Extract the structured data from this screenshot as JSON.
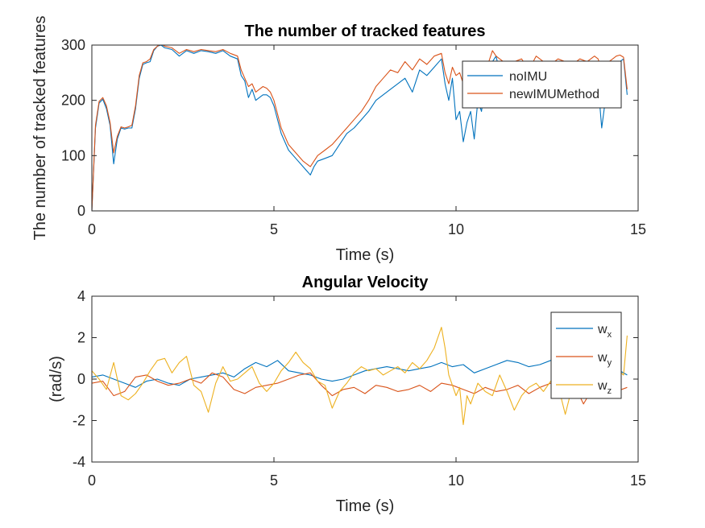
{
  "chart_data": [
    {
      "type": "line",
      "title": "The number of tracked features",
      "xlabel": "Time (s)",
      "ylabel": "The number of tracked features",
      "xlim": [
        0,
        15
      ],
      "ylim": [
        0,
        300
      ],
      "xticks": [
        0,
        5,
        10,
        15
      ],
      "yticks": [
        0,
        100,
        200,
        300
      ],
      "xtick_labels": [
        "0",
        "5",
        "10",
        "15"
      ],
      "ytick_labels": [
        "0",
        "100",
        "200",
        "300"
      ],
      "grid": false,
      "legend_position": "top-right",
      "series": [
        {
          "name": "noIMU",
          "color": "#0072BD",
          "x": [
            0,
            0.1,
            0.2,
            0.3,
            0.4,
            0.5,
            0.6,
            0.7,
            0.8,
            0.9,
            1.0,
            1.1,
            1.2,
            1.3,
            1.4,
            1.5,
            1.6,
            1.7,
            1.8,
            1.9,
            2.0,
            2.2,
            2.4,
            2.6,
            2.8,
            3.0,
            3.2,
            3.4,
            3.6,
            3.8,
            4.0,
            4.1,
            4.2,
            4.3,
            4.4,
            4.5,
            4.6,
            4.7,
            4.8,
            4.9,
            5.0,
            5.2,
            5.4,
            5.6,
            5.8,
            6.0,
            6.1,
            6.2,
            6.4,
            6.6,
            6.8,
            7.0,
            7.2,
            7.4,
            7.6,
            7.8,
            8.0,
            8.2,
            8.4,
            8.6,
            8.8,
            9.0,
            9.2,
            9.4,
            9.6,
            9.7,
            9.8,
            9.9,
            10.0,
            10.1,
            10.2,
            10.3,
            10.4,
            10.5,
            10.6,
            10.7,
            10.8,
            10.9,
            11.0,
            11.1,
            11.2,
            11.4,
            11.6,
            11.8,
            12.0,
            12.2,
            12.4,
            12.6,
            12.8,
            13.0,
            13.2,
            13.4,
            13.6,
            13.8,
            13.9,
            14.0,
            14.1,
            14.2,
            14.3,
            14.4,
            14.5,
            14.6,
            14.7
          ],
          "values": [
            0,
            150,
            195,
            202,
            185,
            155,
            85,
            130,
            150,
            148,
            150,
            150,
            185,
            240,
            265,
            268,
            270,
            290,
            298,
            300,
            295,
            292,
            280,
            290,
            285,
            290,
            288,
            285,
            290,
            280,
            275,
            245,
            235,
            205,
            220,
            200,
            205,
            210,
            210,
            205,
            190,
            140,
            110,
            95,
            80,
            65,
            80,
            90,
            95,
            100,
            120,
            140,
            150,
            165,
            180,
            200,
            210,
            220,
            230,
            240,
            215,
            255,
            245,
            260,
            275,
            230,
            200,
            240,
            165,
            180,
            125,
            160,
            180,
            130,
            200,
            180,
            230,
            245,
            270,
            280,
            250,
            240,
            230,
            245,
            220,
            265,
            245,
            235,
            255,
            250,
            220,
            250,
            240,
            265,
            230,
            150,
            200,
            240,
            250,
            260,
            270,
            275,
            210
          ]
        },
        {
          "name": "newIMUMethod",
          "color": "#D95319",
          "x": [
            0,
            0.1,
            0.2,
            0.3,
            0.4,
            0.5,
            0.6,
            0.7,
            0.8,
            0.9,
            1.0,
            1.1,
            1.2,
            1.3,
            1.4,
            1.5,
            1.6,
            1.7,
            1.8,
            1.9,
            2.0,
            2.2,
            2.4,
            2.6,
            2.8,
            3.0,
            3.2,
            3.4,
            3.6,
            3.8,
            4.0,
            4.1,
            4.2,
            4.3,
            4.4,
            4.5,
            4.6,
            4.7,
            4.8,
            4.9,
            5.0,
            5.2,
            5.4,
            5.6,
            5.8,
            6.0,
            6.1,
            6.2,
            6.4,
            6.6,
            6.8,
            7.0,
            7.2,
            7.4,
            7.6,
            7.8,
            8.0,
            8.2,
            8.4,
            8.6,
            8.8,
            9.0,
            9.2,
            9.4,
            9.6,
            9.7,
            9.8,
            9.9,
            10.0,
            10.1,
            10.2,
            10.3,
            10.4,
            10.5,
            10.6,
            10.7,
            10.8,
            10.9,
            11.0,
            11.1,
            11.2,
            11.4,
            11.6,
            11.8,
            12.0,
            12.2,
            12.4,
            12.6,
            12.8,
            13.0,
            13.2,
            13.4,
            13.6,
            13.8,
            13.9,
            14.0,
            14.1,
            14.2,
            14.3,
            14.4,
            14.5,
            14.6,
            14.7
          ],
          "values": [
            0,
            155,
            198,
            205,
            190,
            160,
            105,
            135,
            152,
            150,
            152,
            155,
            190,
            245,
            268,
            270,
            275,
            292,
            298,
            302,
            298,
            295,
            285,
            292,
            288,
            292,
            290,
            288,
            292,
            285,
            280,
            255,
            240,
            225,
            230,
            215,
            220,
            225,
            222,
            215,
            200,
            150,
            120,
            105,
            90,
            80,
            90,
            100,
            110,
            120,
            135,
            150,
            165,
            180,
            200,
            225,
            240,
            255,
            250,
            270,
            255,
            275,
            265,
            280,
            285,
            250,
            230,
            260,
            245,
            250,
            230,
            225,
            235,
            240,
            260,
            245,
            255,
            270,
            290,
            280,
            275,
            265,
            270,
            275,
            255,
            280,
            270,
            265,
            275,
            270,
            265,
            275,
            270,
            280,
            275,
            255,
            265,
            270,
            275,
            280,
            282,
            278,
            220
          ]
        }
      ]
    },
    {
      "type": "line",
      "title": "Angular Velocity",
      "xlabel": "Time (s)",
      "ylabel": "(rad/s)",
      "xlim": [
        0,
        15
      ],
      "ylim": [
        -4,
        4
      ],
      "xticks": [
        0,
        5,
        10,
        15
      ],
      "yticks": [
        -4,
        -2,
        0,
        2,
        4
      ],
      "xtick_labels": [
        "0",
        "5",
        "10",
        "15"
      ],
      "ytick_labels": [
        "-4",
        "-2",
        "0",
        "2",
        "4"
      ],
      "grid": false,
      "legend_position": "top-right",
      "series": [
        {
          "name": "w",
          "subscript": "x",
          "color": "#0072BD",
          "x": [
            0,
            0.3,
            0.6,
            0.9,
            1.2,
            1.5,
            1.8,
            2.1,
            2.4,
            2.7,
            3.0,
            3.3,
            3.6,
            3.9,
            4.2,
            4.5,
            4.8,
            5.1,
            5.4,
            5.7,
            6.0,
            6.3,
            6.6,
            6.9,
            7.2,
            7.5,
            7.8,
            8.1,
            8.4,
            8.7,
            9.0,
            9.3,
            9.6,
            9.9,
            10.2,
            10.5,
            10.8,
            11.1,
            11.4,
            11.7,
            12.0,
            12.3,
            12.6,
            12.9,
            13.2,
            13.5,
            13.8,
            14.1,
            14.4,
            14.7
          ],
          "values": [
            0.1,
            0.2,
            0.0,
            -0.2,
            -0.4,
            -0.1,
            0.0,
            -0.2,
            -0.3,
            0.0,
            0.1,
            0.2,
            0.3,
            0.1,
            0.5,
            0.8,
            0.6,
            0.9,
            0.4,
            0.3,
            0.2,
            0.0,
            -0.1,
            0.0,
            0.2,
            0.4,
            0.5,
            0.6,
            0.5,
            0.4,
            0.5,
            0.6,
            0.8,
            0.6,
            0.7,
            0.3,
            0.5,
            0.7,
            0.9,
            0.8,
            0.6,
            0.7,
            0.9,
            1.0,
            0.8,
            0.7,
            0.4,
            0.3,
            0.5,
            0.2
          ]
        },
        {
          "name": "w",
          "subscript": "y",
          "color": "#D95319",
          "x": [
            0,
            0.3,
            0.6,
            0.9,
            1.2,
            1.5,
            1.8,
            2.1,
            2.4,
            2.7,
            3.0,
            3.3,
            3.6,
            3.9,
            4.2,
            4.5,
            4.8,
            5.1,
            5.4,
            5.7,
            6.0,
            6.3,
            6.6,
            6.9,
            7.2,
            7.5,
            7.8,
            8.1,
            8.4,
            8.7,
            9.0,
            9.3,
            9.6,
            9.9,
            10.2,
            10.5,
            10.8,
            11.1,
            11.4,
            11.7,
            12.0,
            12.3,
            12.6,
            12.9,
            13.2,
            13.5,
            13.8,
            14.1,
            14.4,
            14.7
          ],
          "values": [
            -0.2,
            -0.1,
            -0.8,
            -0.6,
            0.1,
            0.2,
            -0.1,
            -0.3,
            -0.2,
            0.0,
            -0.2,
            0.3,
            0.1,
            -0.5,
            -0.7,
            -0.4,
            -0.3,
            -0.2,
            0.0,
            0.2,
            0.3,
            -0.3,
            -0.8,
            -0.5,
            -0.4,
            -0.7,
            -0.3,
            -0.4,
            -0.6,
            -0.5,
            -0.3,
            -0.6,
            -0.2,
            -0.3,
            -0.5,
            -0.7,
            -0.4,
            -0.6,
            -0.5,
            -0.3,
            -0.7,
            -0.4,
            -0.2,
            -0.3,
            -0.1,
            -1.2,
            -0.3,
            -0.5,
            -0.6,
            -0.4
          ]
        },
        {
          "name": "w",
          "subscript": "z",
          "color": "#EDB120",
          "x": [
            0,
            0.2,
            0.4,
            0.6,
            0.8,
            1.0,
            1.2,
            1.4,
            1.6,
            1.8,
            2.0,
            2.2,
            2.4,
            2.6,
            2.8,
            3.0,
            3.2,
            3.4,
            3.6,
            3.8,
            4.0,
            4.2,
            4.4,
            4.6,
            4.8,
            5.0,
            5.2,
            5.4,
            5.6,
            5.8,
            6.0,
            6.2,
            6.4,
            6.6,
            6.8,
            7.0,
            7.2,
            7.4,
            7.6,
            7.8,
            8.0,
            8.2,
            8.4,
            8.6,
            8.8,
            9.0,
            9.2,
            9.4,
            9.6,
            9.7,
            9.8,
            9.9,
            10.0,
            10.1,
            10.2,
            10.3,
            10.4,
            10.6,
            10.8,
            11.0,
            11.2,
            11.4,
            11.6,
            11.8,
            12.0,
            12.2,
            12.4,
            12.6,
            12.8,
            13.0,
            13.2,
            13.4,
            13.6,
            13.8,
            14.0,
            14.2,
            14.4,
            14.6,
            14.7
          ],
          "values": [
            0.4,
            0.0,
            -0.5,
            0.8,
            -0.8,
            -1.0,
            -0.7,
            -0.2,
            0.4,
            0.9,
            1.0,
            0.3,
            0.8,
            1.1,
            -0.3,
            -0.6,
            -1.6,
            -0.2,
            0.6,
            -0.1,
            0.0,
            0.3,
            0.6,
            -0.2,
            -0.6,
            -0.2,
            0.4,
            0.8,
            1.3,
            0.8,
            0.5,
            -0.1,
            -0.3,
            -1.4,
            -0.6,
            -0.2,
            0.3,
            0.6,
            0.4,
            0.5,
            0.2,
            0.4,
            0.6,
            0.3,
            0.8,
            0.5,
            0.9,
            1.5,
            2.5,
            1.5,
            0.2,
            -0.3,
            -0.8,
            -0.4,
            -2.2,
            -0.8,
            -1.2,
            -0.2,
            -0.6,
            -0.8,
            0.2,
            -0.6,
            -1.5,
            -0.8,
            -0.4,
            -0.2,
            -0.6,
            -0.1,
            -0.3,
            -1.7,
            -0.3,
            0.0,
            0.3,
            -0.5,
            0.0,
            -0.8,
            0.5,
            0.2,
            2.1
          ]
        }
      ]
    }
  ]
}
